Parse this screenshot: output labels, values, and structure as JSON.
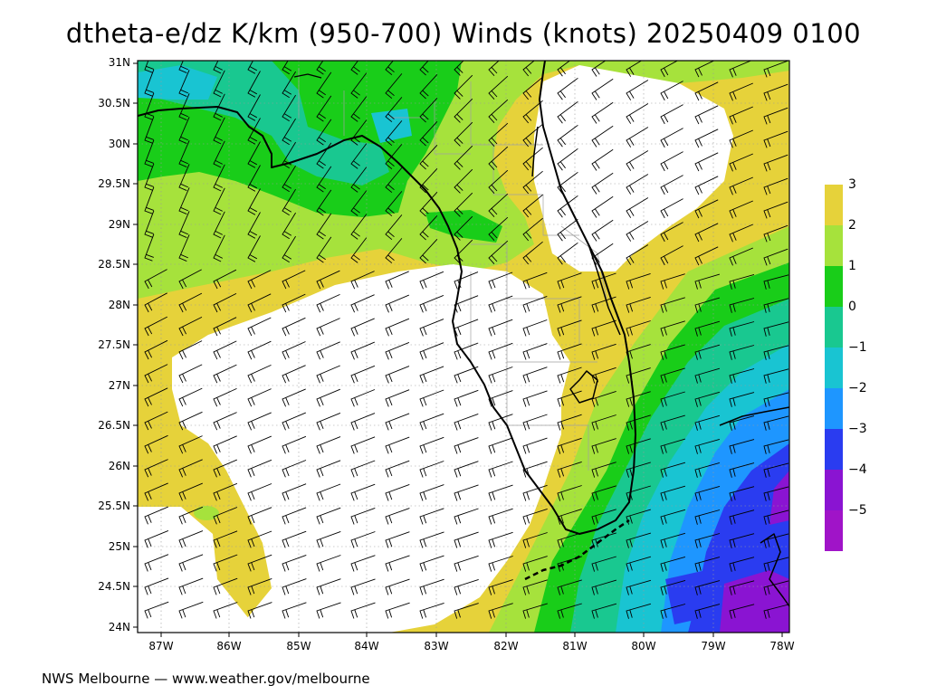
{
  "title": "dtheta-e/dz K/km (950-700) Winds (knots) 20250409 0100",
  "credit": "NWS Melbourne — www.weather.gov/melbourne",
  "map_extent": {
    "lon": [
      -87.35,
      -77.95
    ],
    "lat": [
      23.95,
      31.05
    ]
  },
  "axes": {
    "lat_labels": [
      "31N",
      "30.5N",
      "30N",
      "29.5N",
      "29N",
      "28.5N",
      "28N",
      "27.5N",
      "27N",
      "26.5N",
      "26N",
      "25.5N",
      "25N",
      "24.5N",
      "24N"
    ],
    "lon_labels": [
      "87W",
      "86W",
      "85W",
      "84W",
      "83W",
      "82W",
      "81W",
      "80W",
      "79W",
      "78W"
    ]
  },
  "colorbar": {
    "labels": [
      "3",
      "2",
      "1",
      "0",
      "−1",
      "−2",
      "−3",
      "−4",
      "−5"
    ],
    "colors": [
      "#e6d23a",
      "#a6e23c",
      "#19cd19",
      "#19c890",
      "#19c4d2",
      "#1e96ff",
      "#2a3cf0",
      "#8a14d2",
      "#a014c8"
    ]
  },
  "field_colors": {
    "gt3": "#ffffff",
    "2to3": "#e6d23a",
    "1to2": "#a6e23c",
    "0to1": "#19cd19",
    "m1to0": "#19c890",
    "m2tom1": "#19c4d2",
    "m3tom2": "#1e96ff",
    "m4tom3": "#2a3cf0",
    "m5tom4": "#8a14d2",
    "ltm5": "#a014c8"
  },
  "coastline_color": "#000000",
  "county_line_color": "#a0a0a0",
  "barb_color": "#000000"
}
